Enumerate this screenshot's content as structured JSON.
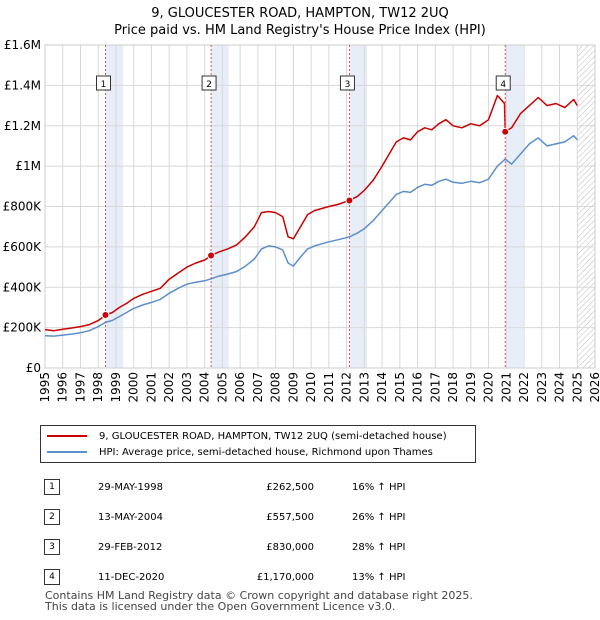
{
  "header": {
    "title": "9, GLOUCESTER ROAD, HAMPTON, TW12 2UQ",
    "subtitle": "Price paid vs. HM Land Registry's House Price Index (HPI)"
  },
  "legend": {
    "property_label": "9, GLOUCESTER ROAD, HAMPTON, TW12 2UQ (semi-detached house)",
    "hpi_label": "HPI: Average price, semi-detached house, Richmond upon Thames"
  },
  "sales": [
    {
      "num": "1",
      "date": "29-MAY-1998",
      "price": "£262,500",
      "hpi": "16% ↑ HPI"
    },
    {
      "num": "2",
      "date": "13-MAY-2004",
      "price": "£557,500",
      "hpi": "26% ↑ HPI"
    },
    {
      "num": "3",
      "date": "29-FEB-2012",
      "price": "£830,000",
      "hpi": "28% ↑ HPI"
    },
    {
      "num": "4",
      "date": "11-DEC-2020",
      "price": "£1,170,000",
      "hpi": "13% ↑ HPI"
    }
  ],
  "footer": {
    "line1": "Contains HM Land Registry data © Crown copyright and database right 2025.",
    "line2": "This data is licensed under the Open Government Licence v3.0."
  },
  "colors": {
    "property": "#cc0000",
    "hpi": "#5b8fcb",
    "shade": "#e8eef8",
    "grid": "#d8d8d8",
    "marker_line": "#dd5555"
  },
  "chart_data": {
    "type": "line",
    "title": "Price paid vs. HM Land Registry's House Price Index (HPI)",
    "xlabel": "",
    "ylabel": "",
    "xlim": [
      1995,
      2026
    ],
    "ylim": [
      0,
      1600000
    ],
    "x_ticks": [
      "1995",
      "1996",
      "1997",
      "1998",
      "1999",
      "2000",
      "2001",
      "2002",
      "2003",
      "2004",
      "2005",
      "2006",
      "2007",
      "2008",
      "2009",
      "2010",
      "2011",
      "2012",
      "2013",
      "2014",
      "2015",
      "2016",
      "2017",
      "2018",
      "2019",
      "2020",
      "2021",
      "2022",
      "2023",
      "2024",
      "2025",
      "2026"
    ],
    "y_ticks": [
      {
        "value": 0,
        "label": "£0"
      },
      {
        "value": 200000,
        "label": "£200K"
      },
      {
        "value": 400000,
        "label": "£400K"
      },
      {
        "value": 600000,
        "label": "£600K"
      },
      {
        "value": 800000,
        "label": "£800K"
      },
      {
        "value": 1000000,
        "label": "£1M"
      },
      {
        "value": 1200000,
        "label": "£1.2M"
      },
      {
        "value": 1400000,
        "label": "£1.4M"
      },
      {
        "value": 1600000,
        "label": "£1.6M"
      }
    ],
    "forecast_from": 2025.0,
    "sale_markers": [
      {
        "label": "1",
        "x": 1998.41,
        "y": 262500
      },
      {
        "label": "2",
        "x": 2004.36,
        "y": 557500
      },
      {
        "label": "3",
        "x": 2012.16,
        "y": 830000
      },
      {
        "label": "4",
        "x": 2020.94,
        "y": 1170000
      }
    ],
    "series": [
      {
        "name": "9, GLOUCESTER ROAD, HAMPTON, TW12 2UQ (semi-detached house)",
        "x": [
          1995.0,
          1995.5,
          1996.0,
          1996.5,
          1997.0,
          1997.5,
          1998.0,
          1998.41,
          1998.8,
          1999.2,
          1999.6,
          2000.0,
          2000.5,
          2001.0,
          2001.5,
          2002.0,
          2002.5,
          2003.0,
          2003.5,
          2004.0,
          2004.36,
          2004.8,
          2005.3,
          2005.8,
          2006.3,
          2006.8,
          2007.2,
          2007.6,
          2008.0,
          2008.4,
          2008.7,
          2009.0,
          2009.4,
          2009.8,
          2010.2,
          2010.6,
          2011.0,
          2011.5,
          2012.16,
          2012.6,
          2013.0,
          2013.5,
          2014.0,
          2014.4,
          2014.8,
          2015.2,
          2015.6,
          2016.0,
          2016.4,
          2016.8,
          2017.2,
          2017.6,
          2018.0,
          2018.5,
          2019.0,
          2019.5,
          2020.0,
          2020.5,
          2020.9,
          2020.94,
          2021.3,
          2021.8,
          2022.3,
          2022.8,
          2023.3,
          2023.8,
          2024.3,
          2024.8,
          2025.0
        ],
        "values": [
          190000,
          185000,
          192000,
          198000,
          205000,
          215000,
          235000,
          262500,
          275000,
          300000,
          320000,
          345000,
          365000,
          380000,
          395000,
          440000,
          470000,
          500000,
          520000,
          535000,
          557500,
          575000,
          590000,
          610000,
          650000,
          700000,
          770000,
          775000,
          770000,
          750000,
          650000,
          640000,
          700000,
          760000,
          780000,
          790000,
          800000,
          810000,
          830000,
          850000,
          880000,
          930000,
          1000000,
          1060000,
          1120000,
          1140000,
          1130000,
          1170000,
          1190000,
          1180000,
          1210000,
          1230000,
          1200000,
          1190000,
          1210000,
          1200000,
          1230000,
          1350000,
          1310000,
          1170000,
          1190000,
          1260000,
          1300000,
          1340000,
          1300000,
          1310000,
          1290000,
          1330000,
          1300000
        ]
      },
      {
        "name": "HPI: Average price, semi-detached house, Richmond upon Thames",
        "x": [
          1995.0,
          1995.5,
          1996.0,
          1996.5,
          1997.0,
          1997.5,
          1998.0,
          1998.41,
          1998.8,
          1999.2,
          1999.6,
          2000.0,
          2000.5,
          2001.0,
          2001.5,
          2002.0,
          2002.5,
          2003.0,
          2003.5,
          2004.0,
          2004.36,
          2004.8,
          2005.3,
          2005.8,
          2006.3,
          2006.8,
          2007.2,
          2007.6,
          2008.0,
          2008.4,
          2008.7,
          2009.0,
          2009.4,
          2009.8,
          2010.2,
          2010.6,
          2011.0,
          2011.5,
          2012.16,
          2012.6,
          2013.0,
          2013.5,
          2014.0,
          2014.4,
          2014.8,
          2015.2,
          2015.6,
          2016.0,
          2016.4,
          2016.8,
          2017.2,
          2017.6,
          2018.0,
          2018.5,
          2019.0,
          2019.5,
          2020.0,
          2020.5,
          2020.94,
          2021.3,
          2021.8,
          2022.3,
          2022.8,
          2023.3,
          2023.8,
          2024.3,
          2024.8,
          2025.0
        ],
        "values": [
          160000,
          158000,
          163000,
          168000,
          175000,
          185000,
          205000,
          226000,
          236000,
          255000,
          275000,
          295000,
          312000,
          325000,
          340000,
          370000,
          395000,
          415000,
          425000,
          432000,
          442000,
          455000,
          465000,
          478000,
          505000,
          540000,
          590000,
          605000,
          600000,
          585000,
          520000,
          505000,
          550000,
          590000,
          605000,
          615000,
          625000,
          635000,
          650000,
          668000,
          690000,
          730000,
          780000,
          820000,
          860000,
          875000,
          870000,
          895000,
          910000,
          905000,
          925000,
          935000,
          920000,
          915000,
          925000,
          918000,
          935000,
          1000000,
          1035000,
          1010000,
          1060000,
          1110000,
          1140000,
          1100000,
          1110000,
          1120000,
          1150000,
          1130000
        ]
      }
    ]
  }
}
